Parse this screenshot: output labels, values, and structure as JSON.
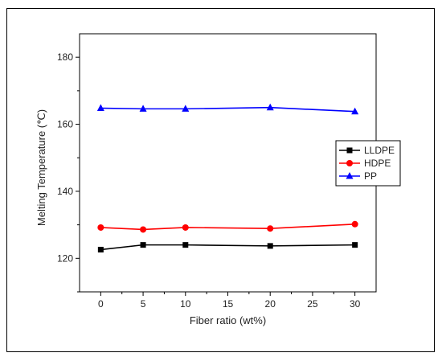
{
  "chart_data": {
    "type": "line",
    "title": "",
    "xlabel": "Fiber ratio (wt%)",
    "ylabel": "Melting Temperature (℃)",
    "xlim": [
      -2.5,
      32.5
    ],
    "ylim": [
      110,
      187
    ],
    "xticks": [
      0,
      5,
      10,
      15,
      20,
      25,
      30
    ],
    "yticks": [
      120,
      140,
      160,
      180
    ],
    "legend_position": "right",
    "grid": false,
    "series": [
      {
        "name": "LLDPE",
        "color": "#000000",
        "marker": "square",
        "x": [
          0,
          5,
          10,
          20,
          30
        ],
        "y": [
          122.6,
          124.0,
          124.0,
          123.7,
          124.0
        ]
      },
      {
        "name": "HDPE",
        "color": "#ff0000",
        "marker": "circle",
        "x": [
          0,
          5,
          10,
          20,
          30
        ],
        "y": [
          129.2,
          128.6,
          129.2,
          128.9,
          130.2
        ]
      },
      {
        "name": "PP",
        "color": "#0000ff",
        "marker": "triangle",
        "x": [
          0,
          5,
          10,
          20,
          30
        ],
        "y": [
          164.8,
          164.6,
          164.6,
          165.0,
          163.8
        ]
      }
    ]
  }
}
